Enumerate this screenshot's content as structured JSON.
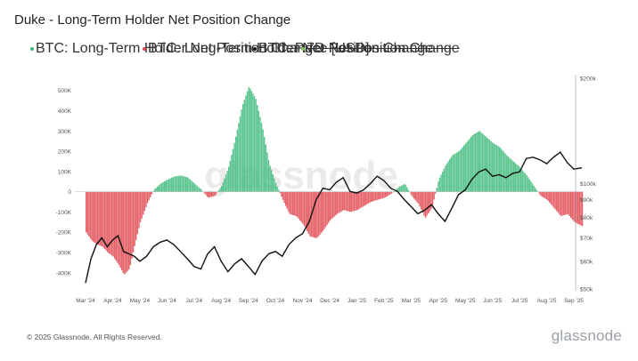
{
  "page": {
    "title": "Duke - Long-Term Holder Net Position Change",
    "footer": "© 2025 Glassnode. All Rights Reserved.",
    "brand": "glassnode",
    "watermark": "glassnode"
  },
  "legend": [
    {
      "label": "BTC: Long-Term Holder Net Position Change",
      "color": "#3dbb7a",
      "struck": false
    },
    {
      "label": "BTC: Long-Term Holder Net Position Change",
      "color": "#e0464f",
      "struck": false
    },
    {
      "label": "BTC: Price [USD]",
      "color": "#111111",
      "struck": false
    },
    {
      "label": "7D Net Position Change",
      "color": "#86c95a",
      "struck": true
    }
  ],
  "colors": {
    "positive": "#3dbb7a",
    "negative": "#e0464f",
    "price": "#111111"
  },
  "chart_data": {
    "type": "bar",
    "x_tick_labels": [
      "Mar '24",
      "Apr '24",
      "May '24",
      "Jun '24",
      "Jul '24",
      "Aug '24",
      "Sep '24",
      "Oct '24",
      "Nov '24",
      "Dec '24",
      "Jan '25",
      "Feb '25",
      "Mar '25",
      "Apr '25",
      "May '25",
      "Jun '25",
      "Jul '25",
      "Aug '25",
      "Sep '25"
    ],
    "y_left": {
      "ticks": [
        500000,
        400000,
        300000,
        200000,
        100000,
        0,
        -100000,
        -200000,
        -300000,
        -400000
      ],
      "tick_labels": [
        "500K",
        "400K",
        "300K",
        "200K",
        "100K",
        "0",
        "-100K",
        "-200K",
        "-300K",
        "-400K"
      ],
      "range": [
        -480000,
        560000
      ]
    },
    "y_right": {
      "scale": "log",
      "tick_values": [
        200000,
        100000,
        90000,
        80000,
        70000,
        60000,
        50000
      ],
      "tick_labels": [
        "$200k",
        "$100k",
        "$90k",
        "$80k",
        "$70k",
        "$60k",
        "$50k"
      ],
      "range": [
        50000,
        200000
      ]
    },
    "net_position_change": [
      {
        "month": "Mar '24",
        "values": [
          -200000,
          -240000,
          -260000,
          -270000,
          -300000
        ]
      },
      {
        "month": "Apr '24",
        "values": [
          -320000,
          -360000,
          -410000,
          -380000,
          -260000
        ]
      },
      {
        "month": "May '24",
        "values": [
          -150000,
          -60000,
          10000,
          40000
        ]
      },
      {
        "month": "Jun '24",
        "values": [
          60000,
          75000,
          80000,
          70000
        ]
      },
      {
        "month": "Jul '24",
        "values": [
          40000,
          10000,
          -30000,
          -20000
        ]
      },
      {
        "month": "Aug '24",
        "values": [
          30000,
          120000,
          260000,
          420000
        ]
      },
      {
        "month": "Sep '24",
        "values": [
          520000,
          460000,
          320000,
          140000
        ]
      },
      {
        "month": "Oct '24",
        "values": [
          40000,
          -40000,
          -110000,
          -120000
        ]
      },
      {
        "month": "Nov '24",
        "values": [
          -160000,
          -220000,
          -230000,
          -190000
        ]
      },
      {
        "month": "Dec '24",
        "values": [
          -140000,
          -110000,
          -90000,
          -100000
        ]
      },
      {
        "month": "Jan '25",
        "values": [
          -90000,
          -70000,
          -50000,
          -40000
        ]
      },
      {
        "month": "Feb '25",
        "values": [
          -30000,
          -10000,
          20000,
          40000
        ]
      },
      {
        "month": "Mar '25",
        "values": [
          -20000,
          -60000,
          -130000,
          -80000
        ]
      },
      {
        "month": "Apr '25",
        "values": [
          60000,
          130000,
          180000,
          200000
        ]
      },
      {
        "month": "May '25",
        "values": [
          240000,
          280000,
          300000,
          270000
        ]
      },
      {
        "month": "Jun '25",
        "values": [
          240000,
          220000,
          180000,
          150000
        ]
      },
      {
        "month": "Jul '25",
        "values": [
          120000,
          80000,
          30000,
          -20000
        ]
      },
      {
        "month": "Aug '25",
        "values": [
          -40000,
          -80000,
          -120000,
          -110000
        ]
      },
      {
        "month": "Sep '25",
        "values": [
          -150000,
          -170000
        ]
      }
    ],
    "price_usd": [
      {
        "month": "Mar '24",
        "values": [
          52000,
          61000,
          67000,
          70000,
          66000
        ]
      },
      {
        "month": "Apr '24",
        "values": [
          69000,
          71000,
          64000,
          63000,
          62000
        ]
      },
      {
        "month": "May '24",
        "values": [
          60000,
          62000,
          66000,
          68000
        ]
      },
      {
        "month": "Jun '24",
        "values": [
          69000,
          67000,
          64000,
          61000
        ]
      },
      {
        "month": "Jul '24",
        "values": [
          58000,
          57000,
          63000,
          66000
        ]
      },
      {
        "month": "Aug '24",
        "values": [
          60000,
          56000,
          59000,
          61000
        ]
      },
      {
        "month": "Sep '24",
        "values": [
          58000,
          55000,
          60000,
          63000
        ]
      },
      {
        "month": "Oct '24",
        "values": [
          64000,
          62000,
          67000,
          70000
        ]
      },
      {
        "month": "Nov '24",
        "values": [
          72000,
          78000,
          90000,
          97000
        ]
      },
      {
        "month": "Dec '24",
        "values": [
          96000,
          101000,
          104000,
          95000
        ]
      },
      {
        "month": "Jan '25",
        "values": [
          94000,
          96000,
          100000,
          105000
        ]
      },
      {
        "month": "Feb '25",
        "values": [
          102000,
          97000,
          95000,
          90000
        ]
      },
      {
        "month": "Mar '25",
        "values": [
          86000,
          82000,
          84000,
          87000
        ]
      },
      {
        "month": "Apr '25",
        "values": [
          82000,
          78000,
          85000,
          93000
        ]
      },
      {
        "month": "May '25",
        "values": [
          96000,
          103000,
          108000,
          110000
        ]
      },
      {
        "month": "Jun '25",
        "values": [
          105000,
          106000,
          104000,
          107000
        ]
      },
      {
        "month": "Jul '25",
        "values": [
          108000,
          118000,
          119000,
          117000
        ]
      },
      {
        "month": "Aug '25",
        "values": [
          114000,
          119000,
          123000,
          115000
        ]
      },
      {
        "month": "Sep '25",
        "values": [
          110000,
          111000
        ]
      }
    ]
  }
}
